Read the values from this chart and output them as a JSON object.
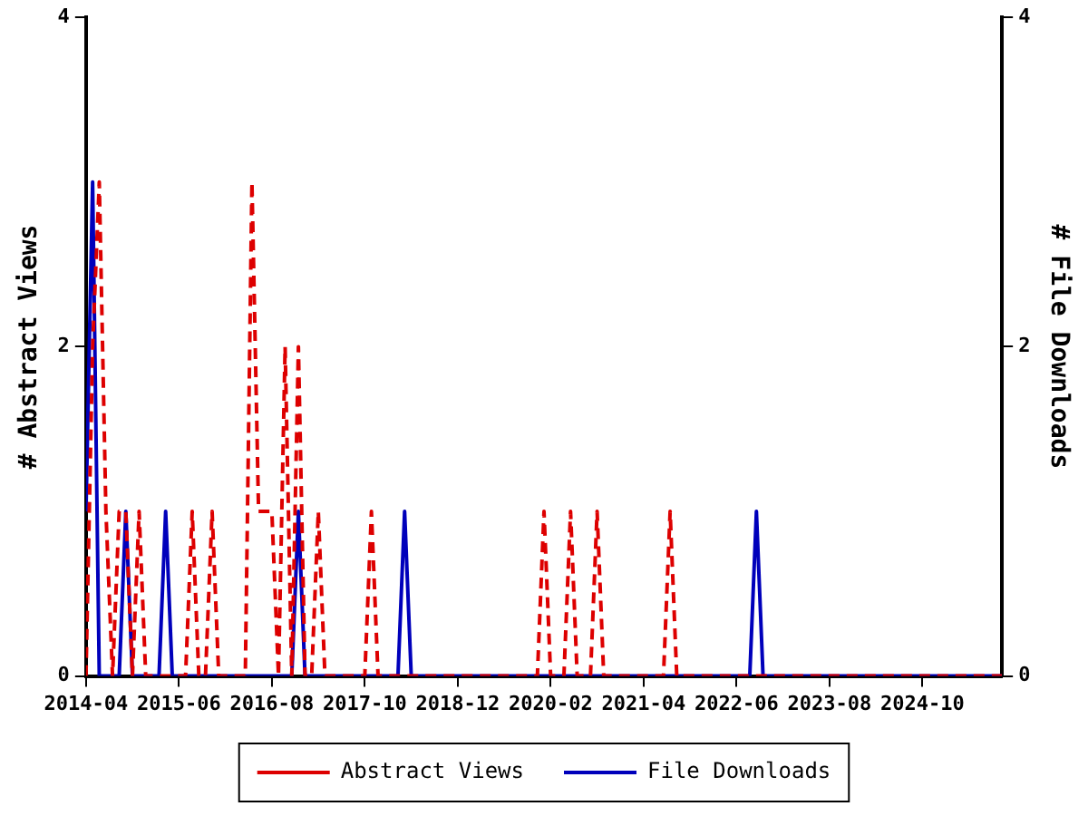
{
  "chart_data": {
    "type": "line",
    "ylabel": "# Abstract Views",
    "y2label": "# File Downloads",
    "x": [
      "2014-04",
      "2014-05",
      "2014-06",
      "2014-07",
      "2014-08",
      "2014-09",
      "2014-10",
      "2014-11",
      "2014-12",
      "2015-01",
      "2015-02",
      "2015-03",
      "2015-04",
      "2015-05",
      "2015-06",
      "2015-07",
      "2015-08",
      "2015-09",
      "2015-10",
      "2015-11",
      "2015-12",
      "2016-01",
      "2016-02",
      "2016-03",
      "2016-04",
      "2016-05",
      "2016-06",
      "2016-07",
      "2016-08",
      "2016-09",
      "2016-10",
      "2016-11",
      "2016-12",
      "2017-01",
      "2017-02",
      "2017-03",
      "2017-04",
      "2017-05",
      "2017-06",
      "2017-07",
      "2017-08",
      "2017-09",
      "2017-10",
      "2017-11",
      "2017-12",
      "2018-01",
      "2018-02",
      "2018-03",
      "2018-04",
      "2018-05",
      "2018-06",
      "2018-07",
      "2018-08",
      "2018-09",
      "2018-10",
      "2018-11",
      "2018-12",
      "2019-01",
      "2019-02",
      "2019-03",
      "2019-04",
      "2019-05",
      "2019-06",
      "2019-07",
      "2019-08",
      "2019-09",
      "2019-10",
      "2019-11",
      "2019-12",
      "2020-01",
      "2020-02",
      "2020-03",
      "2020-04",
      "2020-05",
      "2020-06",
      "2020-07",
      "2020-08",
      "2020-09",
      "2020-10",
      "2020-11",
      "2020-12",
      "2021-01",
      "2021-02",
      "2021-03",
      "2021-04",
      "2021-05",
      "2021-06",
      "2021-07",
      "2021-08",
      "2021-09",
      "2021-10",
      "2021-11",
      "2021-12",
      "2022-01",
      "2022-02",
      "2022-03",
      "2022-04",
      "2022-05",
      "2022-06",
      "2022-07",
      "2022-08",
      "2022-09",
      "2022-10",
      "2022-11",
      "2022-12",
      "2023-01",
      "2023-02",
      "2023-03",
      "2023-04",
      "2023-05",
      "2023-06",
      "2023-07",
      "2023-08",
      "2023-09",
      "2023-10",
      "2023-11",
      "2023-12",
      "2024-01",
      "2024-02",
      "2024-03",
      "2024-04",
      "2024-05",
      "2024-06",
      "2024-07",
      "2024-08",
      "2024-09",
      "2024-10",
      "2024-11",
      "2024-12",
      "2025-01",
      "2025-02",
      "2025-03",
      "2025-04",
      "2025-05",
      "2025-06",
      "2025-07",
      "2025-08",
      "2025-09",
      "2025-10"
    ],
    "series": [
      {
        "name": "Abstract Views",
        "color": "#dd0000",
        "line_style": "dashed",
        "values": [
          0,
          2,
          3,
          1,
          0,
          1,
          1,
          0,
          1,
          0,
          0,
          0,
          0,
          0,
          0,
          0,
          1,
          0,
          0,
          1,
          0,
          0,
          0,
          0,
          0,
          3,
          1,
          1,
          1,
          0,
          2,
          0,
          2,
          0,
          0,
          1,
          0,
          0,
          0,
          0,
          0,
          0,
          0,
          1,
          0,
          0,
          0,
          0,
          0,
          0,
          0,
          0,
          0,
          0,
          0,
          0,
          0,
          0,
          0,
          0,
          0,
          0,
          0,
          0,
          0,
          0,
          0,
          0,
          0,
          1,
          0,
          0,
          0,
          1,
          0,
          0,
          0,
          1,
          0,
          0,
          0,
          0,
          0,
          0,
          0,
          0,
          0,
          0,
          1,
          0,
          0,
          0,
          0,
          0,
          0,
          0,
          0,
          0,
          0,
          0,
          0,
          0,
          0,
          0,
          0,
          0,
          0,
          0,
          0,
          0,
          0,
          0,
          0,
          0,
          0,
          0,
          0,
          0,
          0,
          0,
          0,
          0,
          0,
          0,
          0,
          0,
          0,
          0,
          0,
          0,
          0,
          0,
          0,
          0,
          0,
          0,
          0,
          0,
          0
        ]
      },
      {
        "name": "File Downloads",
        "color": "#0000bb",
        "line_style": "solid",
        "axis": "y2",
        "values": [
          1,
          3,
          0,
          0,
          0,
          0,
          1,
          0,
          0,
          0,
          0,
          0,
          1,
          0,
          0,
          0,
          0,
          0,
          0,
          0,
          0,
          0,
          0,
          0,
          0,
          0,
          0,
          0,
          0,
          0,
          0,
          0,
          1,
          0,
          0,
          0,
          0,
          0,
          0,
          0,
          0,
          0,
          0,
          0,
          0,
          0,
          0,
          0,
          1,
          0,
          0,
          0,
          0,
          0,
          0,
          0,
          0,
          0,
          0,
          0,
          0,
          0,
          0,
          0,
          0,
          0,
          0,
          0,
          0,
          0,
          0,
          0,
          0,
          0,
          0,
          0,
          0,
          0,
          0,
          0,
          0,
          0,
          0,
          0,
          0,
          0,
          0,
          0,
          0,
          0,
          0,
          0,
          0,
          0,
          0,
          0,
          0,
          0,
          0,
          0,
          0,
          1,
          0,
          0,
          0,
          0,
          0,
          0,
          0,
          0,
          0,
          0,
          0,
          0,
          0,
          0,
          0,
          0,
          0,
          0,
          0,
          0,
          0,
          0,
          0,
          0,
          0,
          0,
          0,
          0,
          0,
          0,
          0,
          0,
          0,
          0,
          0,
          0,
          0
        ]
      }
    ],
    "xlim": [
      "2014-04",
      "2025-10"
    ],
    "xticks": [
      "2014-04",
      "2015-06",
      "2016-08",
      "2017-10",
      "2018-12",
      "2020-02",
      "2021-04",
      "2022-06",
      "2023-08",
      "2024-10"
    ],
    "ylim": [
      0,
      4
    ],
    "yticks": [
      0,
      2,
      4
    ],
    "y2lim": [
      0,
      4
    ],
    "y2ticks": [
      0,
      2,
      4
    ],
    "grid": false,
    "legend": "bottom",
    "marker": "none"
  }
}
